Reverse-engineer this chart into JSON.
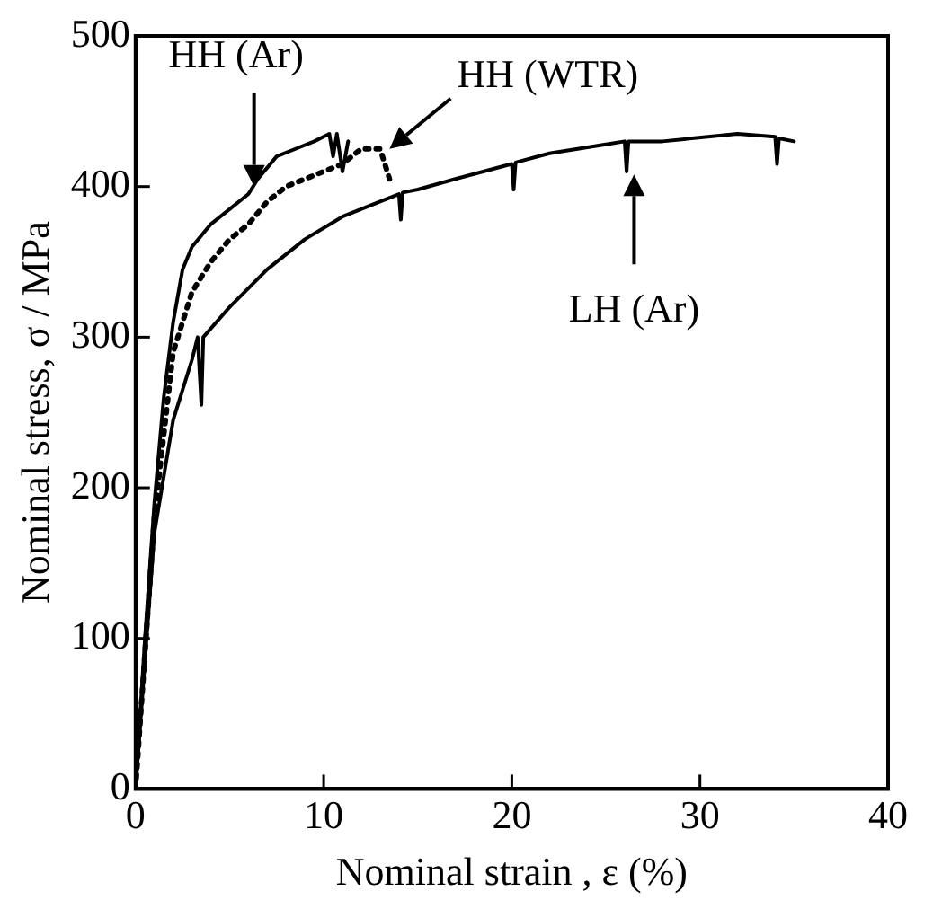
{
  "chart_data": {
    "type": "line",
    "xlabel": "Nominal strain , ε (%)",
    "ylabel": "Nominal stress, σ / MPa",
    "xlim": [
      0,
      40
    ],
    "xticks": [
      0,
      10,
      20,
      30,
      40
    ],
    "ylim": [
      0,
      500
    ],
    "yticks": [
      0,
      100,
      200,
      300,
      400,
      500
    ],
    "grid": false,
    "legend": false,
    "marker": "none",
    "series": [
      {
        "color": "#000000",
        "line_style": "solid",
        "x": [
          0,
          0.5,
          1,
          1.5,
          2,
          2.5,
          3,
          4,
          5,
          6,
          6.5,
          7.5,
          8.5,
          9.5,
          10.3,
          10.5,
          10.7,
          11,
          11.3
        ],
        "values": [
          0,
          100,
          190,
          260,
          310,
          345,
          360,
          375,
          385,
          395,
          405,
          420,
          425,
          430,
          435,
          420,
          435,
          410,
          430
        ]
      },
      {
        "color": "#000000",
        "line_style": "dotted",
        "x": [
          0,
          1,
          2,
          2.5,
          3,
          4,
          5,
          6,
          7,
          8,
          9,
          10,
          11,
          12,
          13,
          13.5
        ],
        "values": [
          0,
          180,
          290,
          310,
          330,
          350,
          365,
          375,
          390,
          400,
          405,
          410,
          415,
          425,
          425,
          405
        ]
      },
      {
        "color": "#000000",
        "line_style": "solid",
        "x": [
          0,
          1,
          2,
          3,
          3.3,
          3.5,
          3.6,
          5,
          7,
          9,
          11,
          13,
          14,
          14.1,
          14.2,
          15,
          17,
          20,
          20.1,
          20.2,
          22,
          25,
          26,
          26.1,
          26.2,
          28,
          32,
          34,
          34.1,
          34.2,
          35
        ],
        "values": [
          0,
          170,
          245,
          285,
          300,
          255,
          300,
          320,
          345,
          365,
          380,
          390,
          395,
          378,
          396,
          398,
          405,
          415,
          398,
          416,
          422,
          428,
          430,
          410,
          430,
          430,
          435,
          433,
          415,
          432,
          430
        ]
      }
    ],
    "annotations": [
      {
        "text": "HH (Ar)",
        "x": 6.3,
        "y": 400
      },
      {
        "text": "HH (WTR)",
        "x": 13.5,
        "y": 425
      },
      {
        "text": "LH (Ar)",
        "x": 26.5,
        "y": 408
      }
    ]
  }
}
